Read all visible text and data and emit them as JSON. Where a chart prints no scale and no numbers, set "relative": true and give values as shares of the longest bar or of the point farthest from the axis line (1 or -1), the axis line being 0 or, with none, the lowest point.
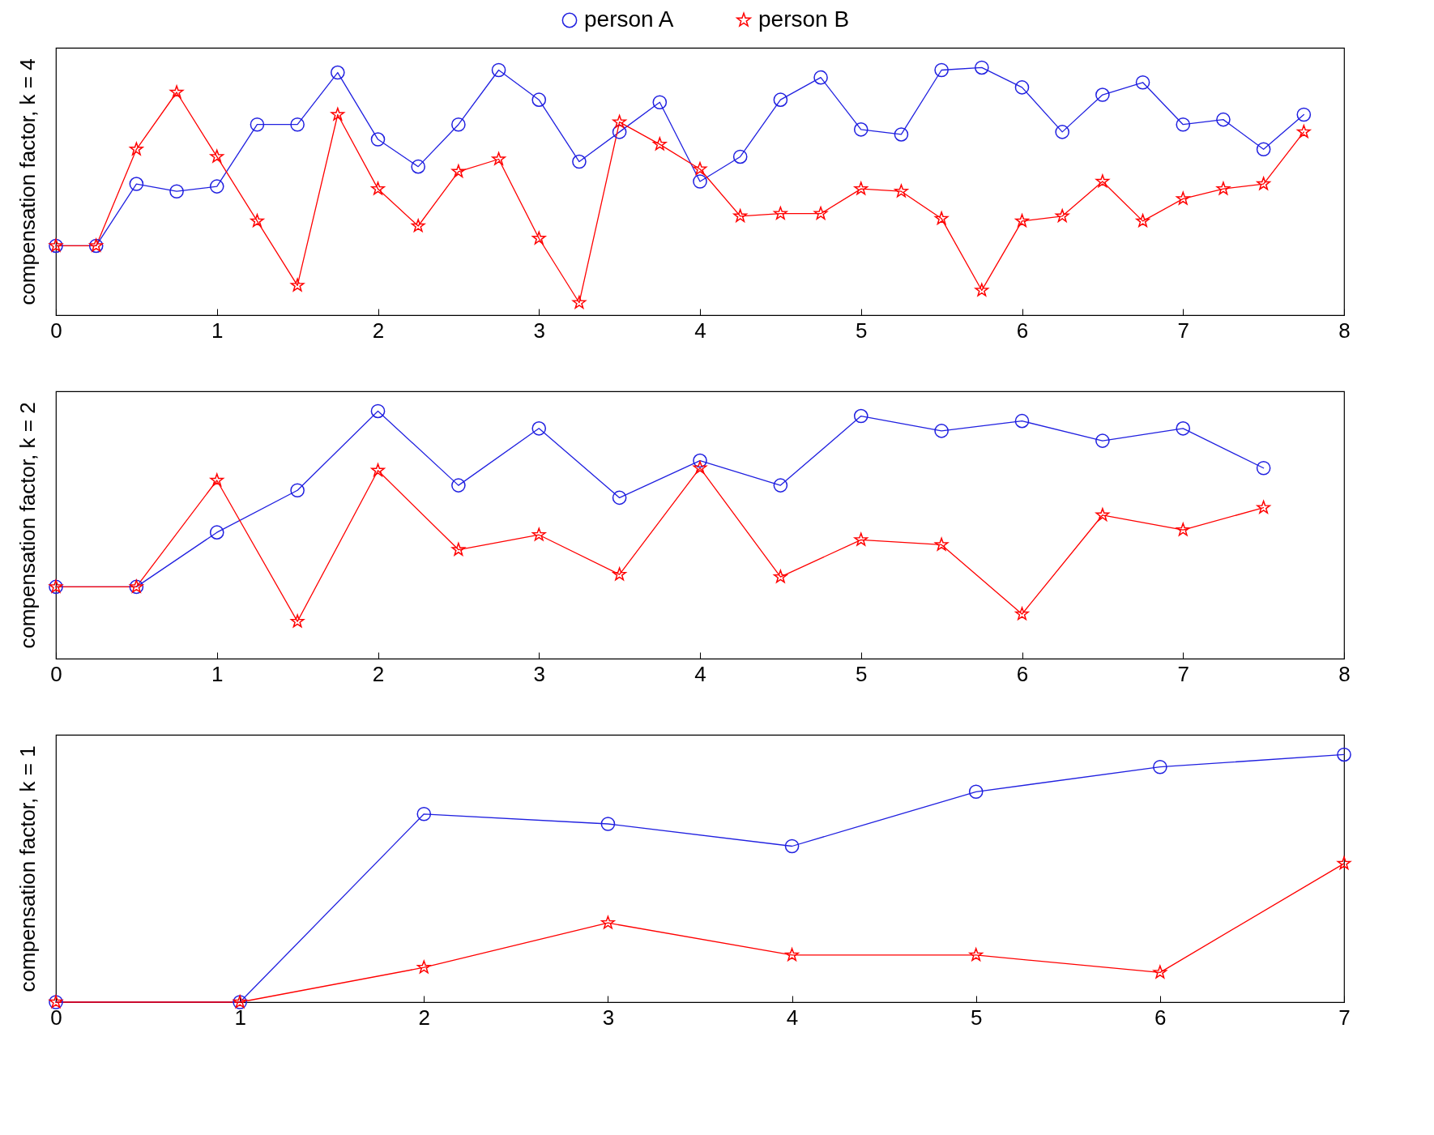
{
  "chart_data": [
    {
      "type": "line",
      "ylabel": "compensation factor, k = 4",
      "relative": true,
      "legend": "top",
      "xlim": [
        0,
        8
      ],
      "xticks": [
        0,
        1,
        2,
        3,
        4,
        5,
        6,
        7,
        8
      ],
      "x": [
        0,
        0.25,
        0.5,
        0.75,
        1,
        1.25,
        1.5,
        1.75,
        2,
        2.25,
        2.5,
        2.75,
        3,
        3.25,
        3.5,
        3.75,
        4,
        4.25,
        4.5,
        4.75,
        5,
        5.25,
        5.5,
        5.75,
        6,
        6.25,
        6.5,
        6.75,
        7,
        7.25,
        7.5,
        7.75
      ],
      "series": [
        {
          "name": "person A",
          "color": "#2020e0",
          "marker": "circle",
          "values": [
            0.28,
            0.28,
            0.53,
            0.5,
            0.52,
            0.77,
            0.77,
            0.98,
            0.71,
            0.6,
            0.77,
            0.99,
            0.87,
            0.62,
            0.74,
            0.86,
            0.54,
            0.64,
            0.87,
            0.96,
            0.75,
            0.73,
            0.99,
            1,
            0.92,
            0.74,
            0.89,
            0.94,
            0.77,
            0.79,
            0.67,
            0.81
          ]
        },
        {
          "name": "person B",
          "color": "#ff0000",
          "marker": "star",
          "values": [
            0.28,
            0.28,
            0.67,
            0.9,
            0.64,
            0.38,
            0.12,
            0.81,
            0.51,
            0.36,
            0.58,
            0.63,
            0.31,
            0.05,
            0.78,
            0.69,
            0.59,
            0.4,
            0.41,
            0.41,
            0.51,
            0.5,
            0.39,
            0.1,
            0.38,
            0.4,
            0.54,
            0.38,
            0.47,
            0.51,
            0.53,
            0.74
          ]
        }
      ]
    },
    {
      "type": "line",
      "ylabel": "compensation factor, k = 2",
      "relative": true,
      "xlim": [
        0,
        8
      ],
      "xticks": [
        0,
        1,
        2,
        3,
        4,
        5,
        6,
        7,
        8
      ],
      "x": [
        0,
        0.5,
        1,
        1.5,
        2,
        2.5,
        3,
        3.5,
        4,
        4.5,
        5,
        5.5,
        6,
        6.5,
        7,
        7.5
      ],
      "series": [
        {
          "color": "#2020e0",
          "marker": "circle",
          "values": [
            0.29,
            0.29,
            0.51,
            0.68,
            1,
            0.7,
            0.93,
            0.65,
            0.8,
            0.7,
            0.98,
            0.92,
            0.96,
            0.88,
            0.93,
            0.77
          ]
        },
        {
          "color": "#ff0000",
          "marker": "star",
          "values": [
            0.29,
            0.29,
            0.72,
            0.15,
            0.76,
            0.44,
            0.5,
            0.34,
            0.77,
            0.33,
            0.48,
            0.46,
            0.18,
            0.58,
            0.52,
            0.61
          ]
        }
      ]
    },
    {
      "type": "line",
      "ylabel": "compensation factor, k = 1",
      "relative": true,
      "xlim": [
        0,
        7
      ],
      "xticks": [
        0,
        1,
        2,
        3,
        4,
        5,
        6,
        7
      ],
      "x": [
        0,
        1,
        2,
        3,
        4,
        5,
        6,
        7
      ],
      "series": [
        {
          "color": "#2020e0",
          "marker": "circle",
          "values": [
            0,
            0,
            0.76,
            0.72,
            0.63,
            0.85,
            0.95,
            1
          ]
        },
        {
          "color": "#ff0000",
          "marker": "star",
          "values": [
            0,
            0,
            0.14,
            0.32,
            0.19,
            0.19,
            0.12,
            0.56
          ]
        }
      ]
    }
  ]
}
